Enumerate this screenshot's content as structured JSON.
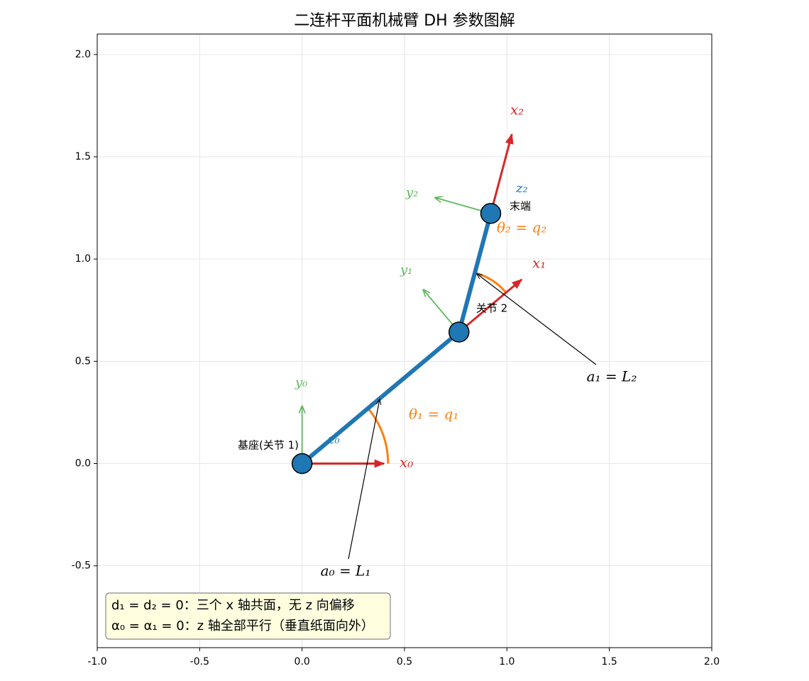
{
  "chart_data": {
    "type": "kinematic",
    "title": "二连杆平面机械臂 DH 参数图解",
    "xlim": [
      -1.0,
      2.0
    ],
    "ylim": [
      -0.9,
      2.1
    ],
    "xticks": [
      {
        "value": -1.0,
        "label": "-1.0"
      },
      {
        "value": -0.5,
        "label": "-0.5"
      },
      {
        "value": 0.0,
        "label": "0.0"
      },
      {
        "value": 0.5,
        "label": "0.5"
      },
      {
        "value": 1.0,
        "label": "1.0"
      },
      {
        "value": 1.5,
        "label": "1.5"
      },
      {
        "value": 2.0,
        "label": "2.0"
      }
    ],
    "yticks": [
      {
        "value": -0.5,
        "label": "-0.5"
      },
      {
        "value": 0.0,
        "label": "0.0"
      },
      {
        "value": 0.5,
        "label": "0.5"
      },
      {
        "value": 1.0,
        "label": "1.0"
      },
      {
        "value": 1.5,
        "label": "1.5"
      },
      {
        "value": 2.0,
        "label": "2.0"
      }
    ],
    "grid": true,
    "joints": {
      "x": [
        0,
        0.766,
        0.921
      ],
      "y": [
        0,
        0.643,
        1.223
      ],
      "labels": [
        "基座(关节 1)",
        "关节 2",
        "末端"
      ],
      "color": "#1f77b4"
    },
    "x_axes": {
      "color": "#d62728",
      "labels": [
        "x₀",
        "x₁",
        "x₂"
      ],
      "x": [
        0.4,
        1.072,
        1.024
      ],
      "y": [
        0,
        0.9,
        1.61
      ]
    },
    "y_axes": {
      "color": "#5cb85c",
      "labels": [
        "y₀",
        "y₁",
        "y₂"
      ],
      "x": [
        0,
        0.592,
        0.65
      ],
      "y": [
        0.28,
        0.85,
        1.3
      ]
    },
    "z_labels": {
      "color": "#1f77b4",
      "labels": [
        "z₀",
        "z₂"
      ]
    },
    "angles": {
      "color": "#ff7f0e",
      "labels": [
        "θ₁ = q₁",
        "θ₂ = q₂"
      ],
      "from": [
        0,
        40
      ],
      "to": [
        40,
        75
      ],
      "radius": [
        0.42,
        0.3
      ]
    },
    "annotations": [
      "a₀ = L₁",
      "a₁ = L₂"
    ],
    "note": [
      "d₁ = d₂ = 0：三个 x 轴共面，无 z 向偏移",
      "α₀ = α₁ = 0：z 轴全部平行（垂直纸面向外）"
    ]
  }
}
